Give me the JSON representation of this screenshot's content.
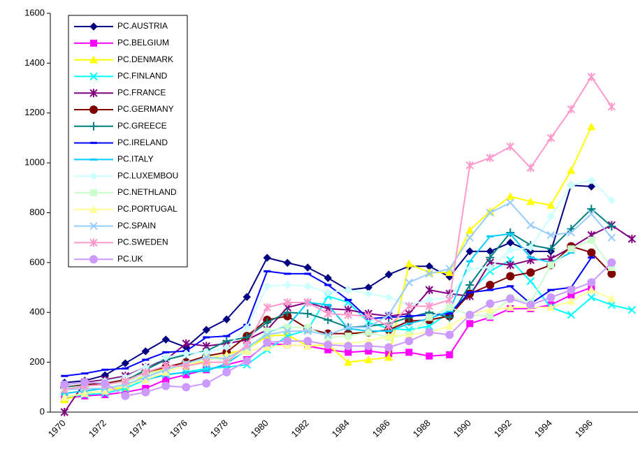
{
  "chart_data": {
    "type": "line",
    "categories": [
      "1970",
      null,
      "1972",
      null,
      "1974",
      null,
      "1976",
      null,
      "1978",
      null,
      "1980",
      null,
      "1982",
      null,
      "1984",
      null,
      "1986",
      null,
      "1988",
      null,
      "1990",
      null,
      "1992",
      null,
      "1994",
      null,
      "1996",
      null,
      null
    ],
    "ylim": [
      0,
      1600
    ],
    "yticks": [
      0,
      200,
      400,
      600,
      800,
      1000,
      1200,
      1400,
      1600
    ],
    "grid": false,
    "legend": "top-left",
    "series": [
      {
        "name": "PC.AUSTRIA",
        "color": "#000080",
        "marker": "diamond",
        "values": [
          118,
          126,
          148,
          196,
          244,
          291,
          260,
          330,
          372,
          462,
          619,
          599,
          580,
          538,
          490,
          500,
          552,
          585,
          585,
          543,
          645,
          645,
          680,
          645,
          645,
          910,
          905,
          null,
          null
        ]
      },
      {
        "name": "PC.BELGIUM",
        "color": "#ff00ff",
        "marker": "square",
        "values": [
          55,
          65,
          70,
          80,
          95,
          130,
          150,
          170,
          190,
          210,
          275,
          270,
          265,
          250,
          240,
          245,
          235,
          240,
          225,
          230,
          355,
          380,
          415,
          415,
          430,
          470,
          500,
          null,
          null
        ]
      },
      {
        "name": "PC.DENMARK",
        "color": "#ffff00",
        "marker": "triangle",
        "values": [
          50,
          75,
          85,
          100,
          150,
          175,
          185,
          205,
          235,
          250,
          305,
          310,
          265,
          270,
          200,
          210,
          220,
          595,
          560,
          560,
          730,
          805,
          865,
          845,
          830,
          970,
          1145,
          null,
          null
        ]
      },
      {
        "name": "PC.FINLAND",
        "color": "#00ffff",
        "marker": "x",
        "values": [
          60,
          70,
          75,
          95,
          130,
          150,
          160,
          175,
          180,
          190,
          250,
          305,
          330,
          465,
          440,
          360,
          335,
          330,
          345,
          400,
          480,
          565,
          610,
          525,
          420,
          390,
          460,
          430,
          410
        ]
      },
      {
        "name": "PC.FRANCE",
        "color": "#800080",
        "marker": "star",
        "values": [
          0,
          120,
          130,
          145,
          180,
          210,
          275,
          265,
          275,
          290,
          330,
          420,
          440,
          415,
          410,
          395,
          385,
          395,
          490,
          475,
          465,
          600,
          590,
          610,
          615,
          660,
          710,
          750,
          695
        ]
      },
      {
        "name": "PC.GERMANY",
        "color": "#800000",
        "marker": "circle",
        "values": [
          100,
          110,
          115,
          130,
          160,
          180,
          200,
          225,
          240,
          305,
          370,
          385,
          335,
          315,
          315,
          320,
          330,
          365,
          370,
          385,
          475,
          510,
          545,
          560,
          590,
          665,
          640,
          555,
          null
        ]
      },
      {
        "name": "PC.GREECE",
        "color": "#008080",
        "marker": "plus",
        "values": [
          100,
          105,
          110,
          125,
          170,
          210,
          230,
          245,
          285,
          300,
          360,
          400,
          395,
          370,
          340,
          345,
          355,
          380,
          400,
          380,
          510,
          620,
          720,
          670,
          655,
          735,
          815,
          745,
          null
        ]
      },
      {
        "name": "PC.IRELAND",
        "color": "#0000ff",
        "marker": "dash",
        "values": [
          145,
          155,
          170,
          175,
          210,
          240,
          245,
          300,
          305,
          350,
          565,
          555,
          555,
          510,
          450,
          375,
          380,
          385,
          390,
          395,
          480,
          490,
          505,
          435,
          490,
          500,
          620,
          null,
          null
        ]
      },
      {
        "name": "PC.ITALY",
        "color": "#00ccff",
        "marker": "dash",
        "values": [
          75,
          85,
          95,
          110,
          130,
          150,
          160,
          165,
          195,
          250,
          320,
          345,
          440,
          430,
          335,
          325,
          325,
          355,
          375,
          405,
          605,
          705,
          715,
          620,
          600,
          640,
          null,
          null,
          null
        ]
      },
      {
        "name": "PC.LUXEMBOU",
        "color": "#ccffff",
        "marker": "diamond",
        "values": [
          110,
          115,
          125,
          140,
          180,
          220,
          235,
          240,
          260,
          340,
          505,
          510,
          505,
          480,
          490,
          475,
          460,
          430,
          450,
          460,
          575,
          580,
          650,
          660,
          785,
          910,
          930,
          850,
          null
        ]
      },
      {
        "name": "PC.NETHLAND",
        "color": "#ccffcc",
        "marker": "square",
        "values": [
          95,
          105,
          110,
          120,
          150,
          170,
          190,
          215,
          210,
          245,
          325,
          340,
          340,
          300,
          305,
          320,
          300,
          310,
          380,
          420,
          390,
          385,
          460,
          440,
          590,
          655,
          690,
          580,
          null
        ]
      },
      {
        "name": "PC.PORTUGAL",
        "color": "#ffff99",
        "marker": "triangle",
        "values": [
          60,
          75,
          85,
          110,
          130,
          160,
          190,
          220,
          230,
          245,
          260,
          270,
          265,
          275,
          275,
          285,
          305,
          310,
          320,
          345,
          395,
          410,
          420,
          420,
          420,
          445,
          490,
          455,
          null
        ]
      },
      {
        "name": "PC.SPAIN",
        "color": "#99ccff",
        "marker": "x",
        "values": [
          90,
          95,
          95,
          110,
          140,
          170,
          195,
          220,
          215,
          260,
          310,
          325,
          325,
          310,
          340,
          340,
          390,
          520,
          555,
          575,
          700,
          800,
          840,
          750,
          710,
          720,
          795,
          700,
          null
        ]
      },
      {
        "name": "PC.SWEDEN",
        "color": "#ff99cc",
        "marker": "star",
        "values": [
          90,
          105,
          110,
          125,
          160,
          185,
          185,
          200,
          200,
          270,
          420,
          440,
          440,
          395,
          390,
          385,
          345,
          425,
          425,
          450,
          990,
          1020,
          1065,
          980,
          1100,
          1215,
          1345,
          1225,
          null
        ]
      },
      {
        "name": "PC.UK",
        "color": "#cc99ff",
        "marker": "circle",
        "values": [
          110,
          120,
          115,
          65,
          80,
          105,
          100,
          115,
          160,
          205,
          280,
          285,
          285,
          270,
          265,
          265,
          260,
          285,
          320,
          310,
          390,
          435,
          455,
          430,
          460,
          490,
          520,
          600,
          null
        ]
      }
    ]
  }
}
